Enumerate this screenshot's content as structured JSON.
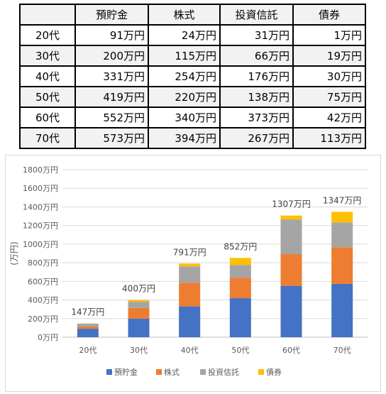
{
  "table": {
    "headers": [
      "",
      "預貯金",
      "株式",
      "投資信託",
      "債券"
    ],
    "rows": [
      [
        "20代",
        "91万円",
        "24万円",
        "31万円",
        "1万円"
      ],
      [
        "30代",
        "200万円",
        "115万円",
        "66万円",
        "19万円"
      ],
      [
        "40代",
        "331万円",
        "254万円",
        "176万円",
        "30万円"
      ],
      [
        "50代",
        "419万円",
        "220万円",
        "138万円",
        "75万円"
      ],
      [
        "60代",
        "552万円",
        "340万円",
        "373万円",
        "42万円"
      ],
      [
        "70代",
        "573万円",
        "394万円",
        "267万円",
        "113万円"
      ]
    ]
  },
  "chart_data": {
    "type": "bar",
    "stacked": true,
    "categories": [
      "20代",
      "30代",
      "40代",
      "50代",
      "60代",
      "70代"
    ],
    "series": [
      {
        "name": "預貯金",
        "values": [
          91,
          200,
          331,
          419,
          552,
          573
        ],
        "color": "#4472c4"
      },
      {
        "name": "株式",
        "values": [
          24,
          115,
          254,
          220,
          340,
          394
        ],
        "color": "#ed7d31"
      },
      {
        "name": "投資信託",
        "values": [
          31,
          66,
          176,
          138,
          373,
          267
        ],
        "color": "#a5a5a5"
      },
      {
        "name": "債券",
        "values": [
          1,
          19,
          30,
          75,
          42,
          113
        ],
        "color": "#ffc000"
      }
    ],
    "totals": [
      "147万円",
      "400万円",
      "791万円",
      "852万円",
      "1307万円",
      "1347万円"
    ],
    "ylabel": "(万円)",
    "ylim": [
      0,
      1800
    ],
    "yticks": [
      "0万円",
      "200万円",
      "400万円",
      "600万円",
      "800万円",
      "1000万円",
      "1200万円",
      "1400万円",
      "1600万円",
      "1800万円"
    ],
    "grid": true,
    "legend": "bottom"
  }
}
